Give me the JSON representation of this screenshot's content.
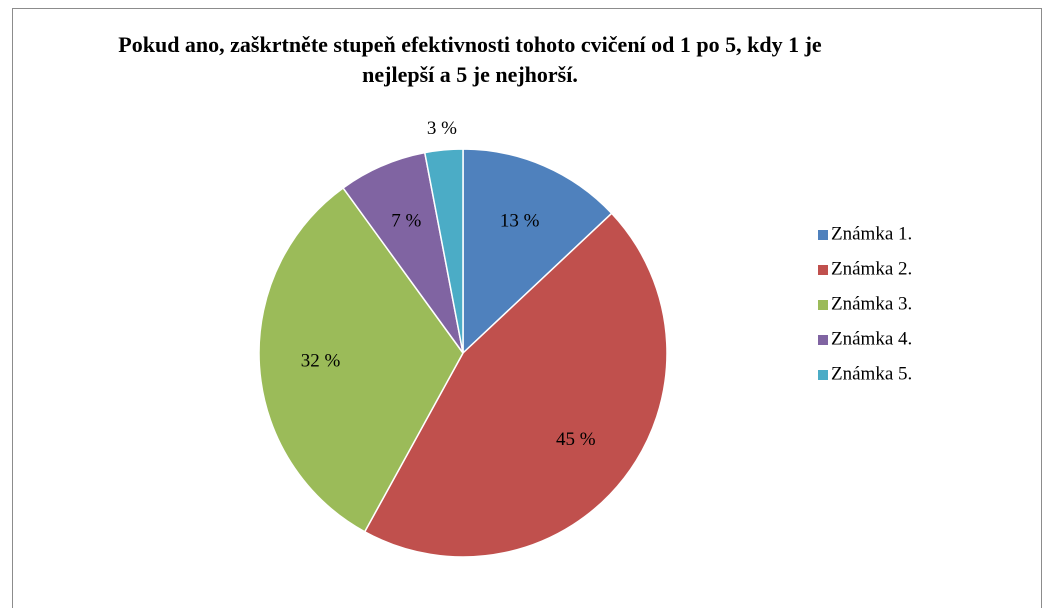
{
  "chart_data": {
    "type": "pie",
    "title": "Pokud ano, zaškrtněte stupeň efektivnosti tohoto cvičení od 1 po 5, kdy 1 je nejlepší a 5 je nejhorší.",
    "categories": [
      "Známka 1.",
      "Známka 2.",
      "Známka 3.",
      "Známka 4.",
      "Známka 5."
    ],
    "values": [
      13,
      45,
      32,
      7,
      3
    ],
    "value_labels": [
      "13 %",
      "45 %",
      "32 %",
      "7 %",
      "3 %"
    ],
    "colors": [
      "#4f81bd",
      "#c0504d",
      "#9bbb59",
      "#8064a2",
      "#4bacc6"
    ],
    "legend": "right"
  }
}
